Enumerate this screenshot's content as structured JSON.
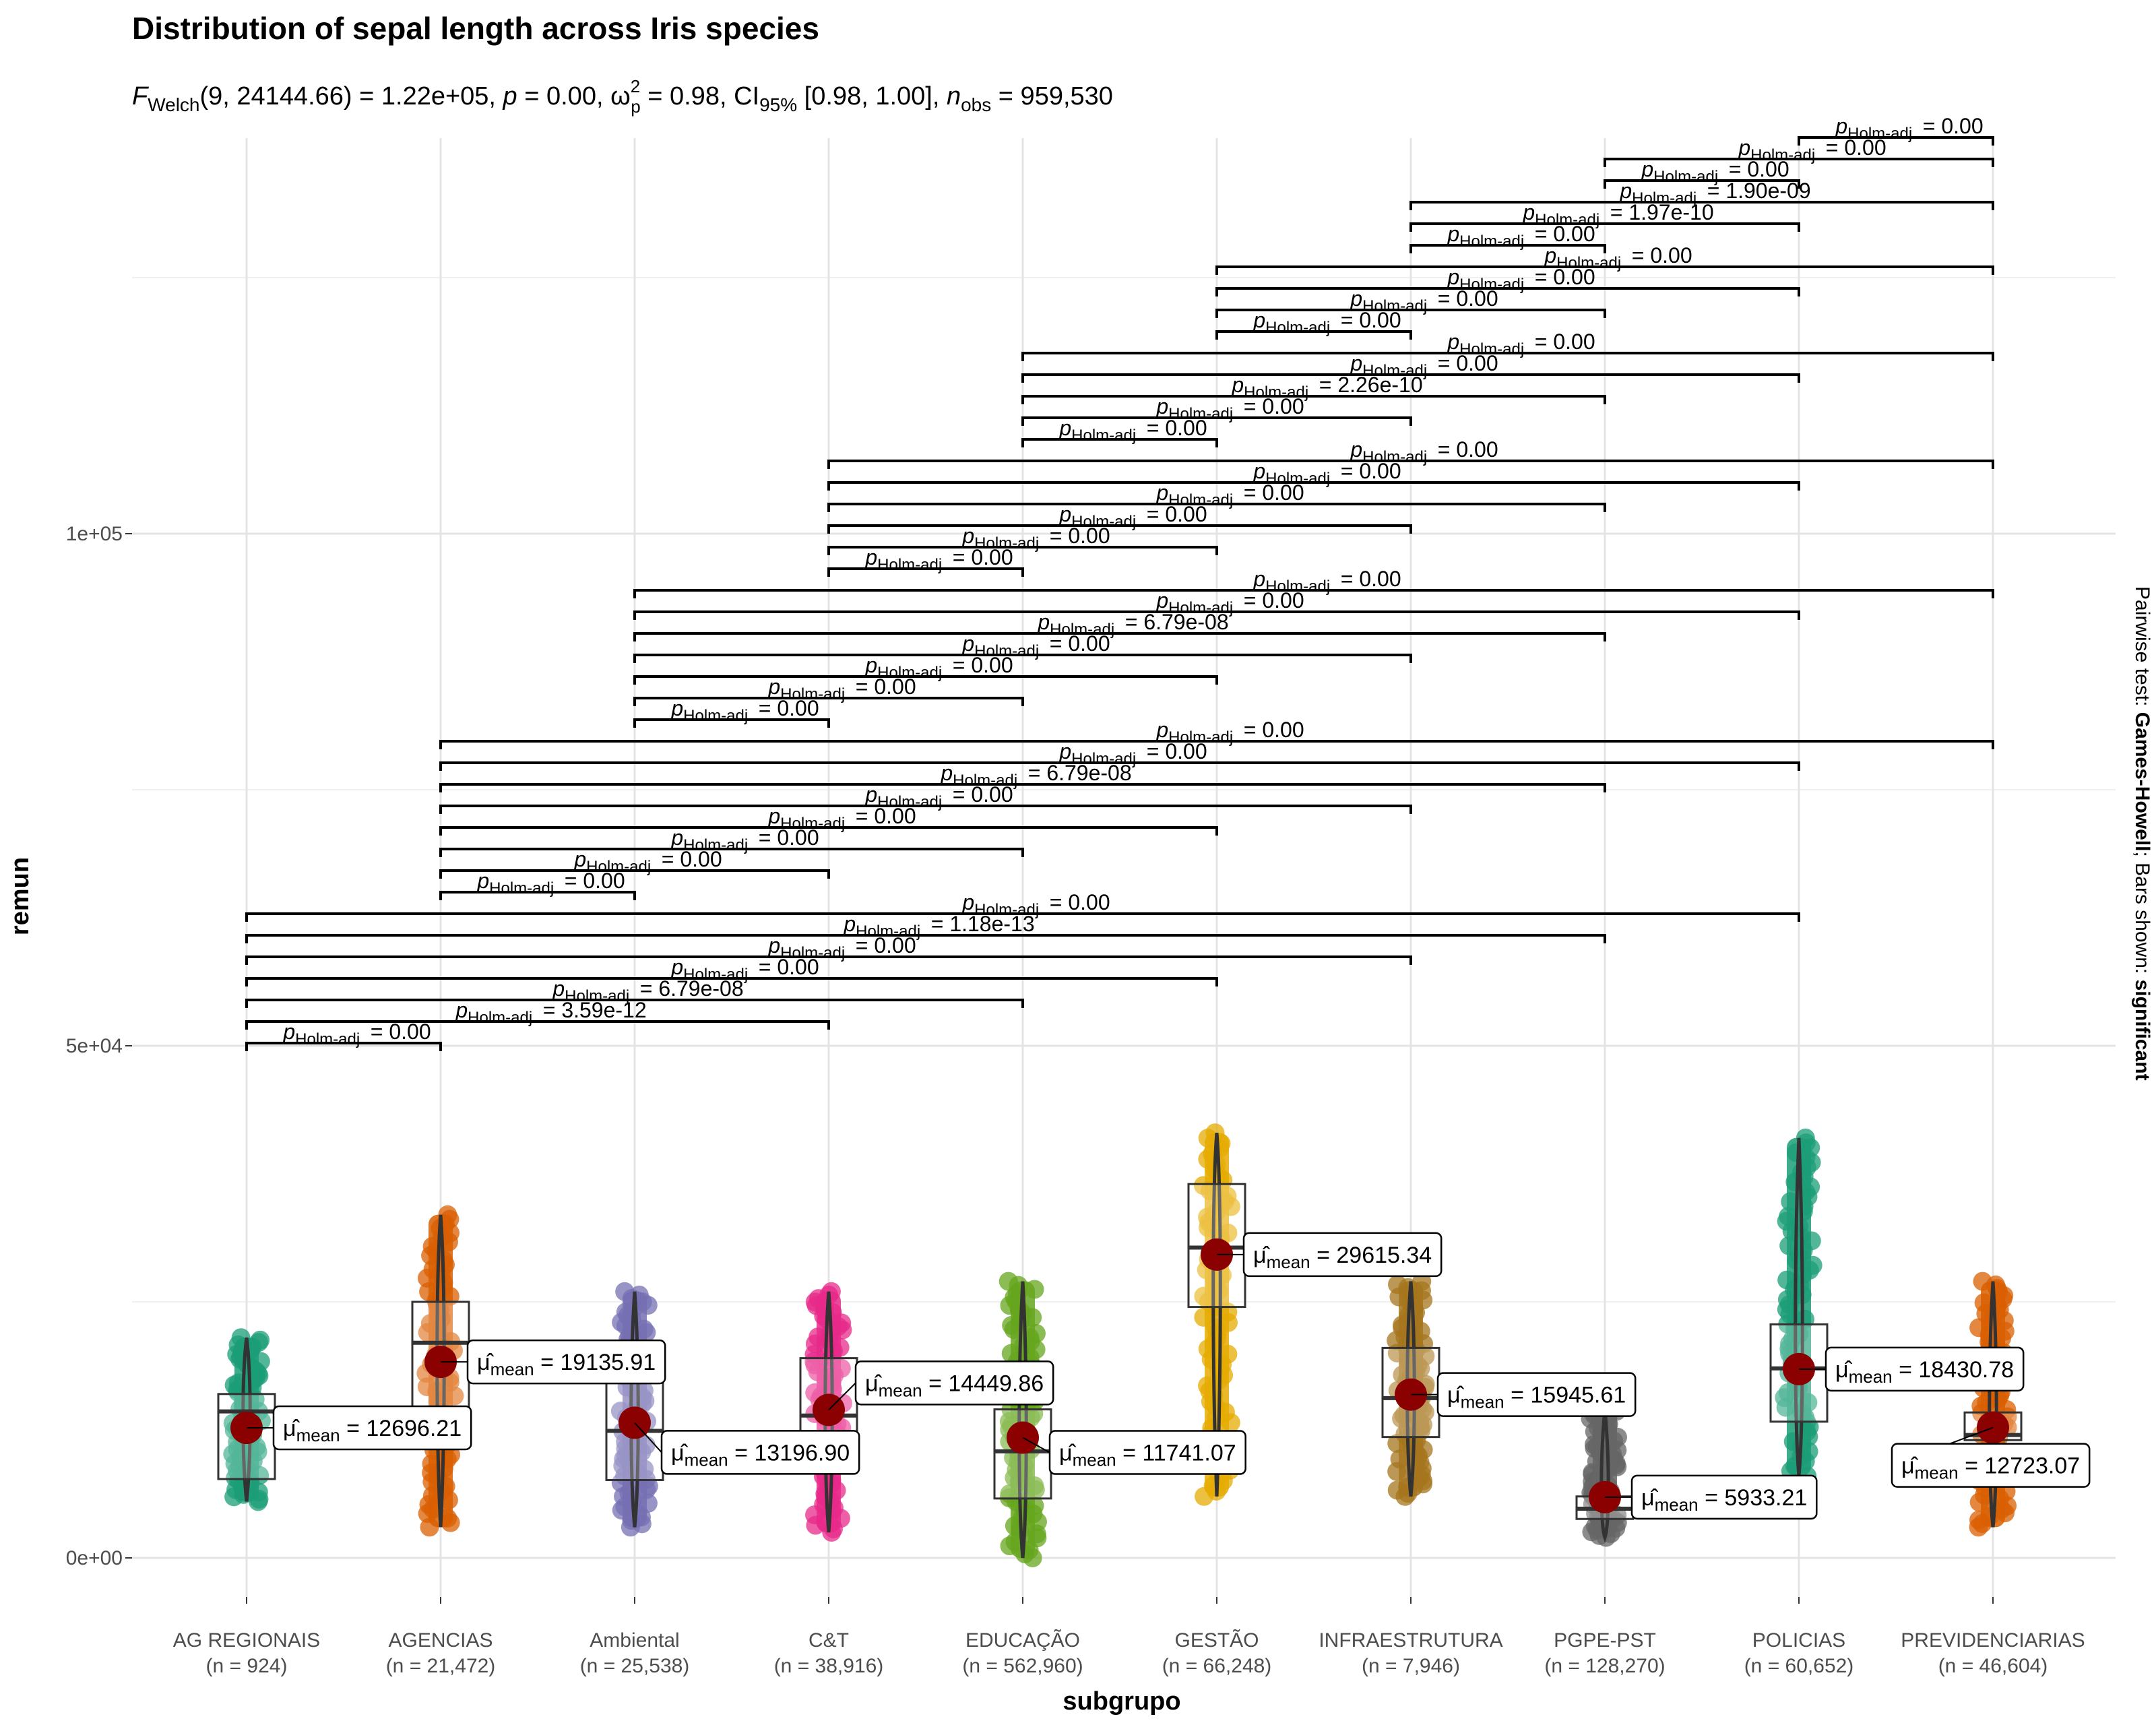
{
  "chart_data": {
    "type": "violin-box",
    "title": "Distribution of sepal length across Iris species",
    "subtitle": "F_Welch(9, 24144.66) = 1.22e+05, p = 0.00, ω̂²_p = 0.98, CI95% [0.98, 1.00], n_obs = 959,530",
    "xlabel": "subgrupo",
    "ylabel": "remun",
    "caption": "Pairwise test: Games-Howell; Bars shown: significant",
    "y_ticks": [
      "0e+00",
      "5e+04",
      "1e+05"
    ],
    "y_tick_values": [
      0,
      50000,
      100000
    ],
    "ylim": [
      -3000,
      135000
    ],
    "grid": true,
    "categories": [
      "AG REGIONAIS",
      "AGENCIAS",
      "Ambiental",
      "C&T",
      "EDUCAÇÃO",
      "GESTÃO",
      "INFRAESTRUTURA",
      "PGPE-PST",
      "POLICIAS",
      "PREVIDENCIARIAS"
    ],
    "n_labels": [
      "(n = 924)",
      "(n = 21,472)",
      "(n = 25,538)",
      "(n = 38,916)",
      "(n = 562,960)",
      "(n = 66,248)",
      "(n = 7,946)",
      "(n = 128,270)",
      "(n = 60,652)",
      "(n = 46,604)"
    ],
    "means": [
      12696.21,
      19135.91,
      13196.9,
      14449.86,
      11741.07,
      29615.34,
      15945.61,
      5933.21,
      18430.78,
      12723.07
    ],
    "mean_labels": [
      "12696.21",
      "19135.91",
      "13196.90",
      "14449.86",
      "11741.07",
      "29615.34",
      "15945.61",
      "5933.21",
      "18430.78",
      "12723.07"
    ],
    "colors": [
      "#1B9E77",
      "#D95F02",
      "#7570B3",
      "#E7298A",
      "#66A61E",
      "#E6AB02",
      "#A6761D",
      "#666666",
      "#1B9E77",
      "#D95F02"
    ],
    "boxes": [
      {
        "q1": 7700,
        "median": 14300,
        "q3": 16000,
        "min": 5500,
        "max": 21500
      },
      {
        "q1": 13000,
        "median": 21000,
        "q3": 25000,
        "min": 3000,
        "max": 33500
      },
      {
        "q1": 7600,
        "median": 12400,
        "q3": 18000,
        "min": 3000,
        "max": 26000
      },
      {
        "q1": 10000,
        "median": 13900,
        "q3": 19500,
        "min": 2500,
        "max": 26000
      },
      {
        "q1": 5800,
        "median": 10400,
        "q3": 14500,
        "min": 0,
        "max": 27000
      },
      {
        "q1": 24500,
        "median": 30300,
        "q3": 36500,
        "min": 6000,
        "max": 41500
      },
      {
        "q1": 11800,
        "median": 15600,
        "q3": 20500,
        "min": 6000,
        "max": 27000
      },
      {
        "q1": 3800,
        "median": 4800,
        "q3": 6000,
        "min": 2000,
        "max": 14500
      },
      {
        "q1": 13300,
        "median": 18500,
        "q3": 22800,
        "min": 8000,
        "max": 41000
      },
      {
        "q1": 11500,
        "median": 12000,
        "q3": 14200,
        "min": 3000,
        "max": 27000
      }
    ],
    "pairwise": [
      {
        "g1": 0,
        "g2": 1,
        "p": "0.00"
      },
      {
        "g1": 0,
        "g2": 3,
        "p": "3.59e-12"
      },
      {
        "g1": 0,
        "g2": 4,
        "p": "6.79e-08"
      },
      {
        "g1": 0,
        "g2": 5,
        "p": "0.00"
      },
      {
        "g1": 0,
        "g2": 6,
        "p": "0.00"
      },
      {
        "g1": 0,
        "g2": 7,
        "p": "1.18e-13"
      },
      {
        "g1": 0,
        "g2": 8,
        "p": "0.00"
      },
      {
        "g1": 1,
        "g2": 2,
        "p": "0.00"
      },
      {
        "g1": 1,
        "g2": 3,
        "p": "0.00"
      },
      {
        "g1": 1,
        "g2": 4,
        "p": "0.00"
      },
      {
        "g1": 1,
        "g2": 5,
        "p": "0.00"
      },
      {
        "g1": 1,
        "g2": 6,
        "p": "0.00"
      },
      {
        "g1": 1,
        "g2": 7,
        "p": "6.79e-08"
      },
      {
        "g1": 1,
        "g2": 8,
        "p": "0.00"
      },
      {
        "g1": 1,
        "g2": 9,
        "p": "0.00"
      },
      {
        "g1": 2,
        "g2": 3,
        "p": "0.00"
      },
      {
        "g1": 2,
        "g2": 4,
        "p": "0.00"
      },
      {
        "g1": 2,
        "g2": 5,
        "p": "0.00"
      },
      {
        "g1": 2,
        "g2": 6,
        "p": "0.00"
      },
      {
        "g1": 2,
        "g2": 7,
        "p": "6.79e-08"
      },
      {
        "g1": 2,
        "g2": 8,
        "p": "0.00"
      },
      {
        "g1": 2,
        "g2": 9,
        "p": "0.00"
      },
      {
        "g1": 3,
        "g2": 4,
        "p": "0.00"
      },
      {
        "g1": 3,
        "g2": 5,
        "p": "0.00"
      },
      {
        "g1": 3,
        "g2": 6,
        "p": "0.00"
      },
      {
        "g1": 3,
        "g2": 7,
        "p": "0.00"
      },
      {
        "g1": 3,
        "g2": 8,
        "p": "0.00"
      },
      {
        "g1": 3,
        "g2": 9,
        "p": "0.00"
      },
      {
        "g1": 4,
        "g2": 5,
        "p": "0.00"
      },
      {
        "g1": 4,
        "g2": 6,
        "p": "0.00"
      },
      {
        "g1": 4,
        "g2": 7,
        "p": "2.26e-10"
      },
      {
        "g1": 4,
        "g2": 8,
        "p": "0.00"
      },
      {
        "g1": 4,
        "g2": 9,
        "p": "0.00"
      },
      {
        "g1": 5,
        "g2": 6,
        "p": "0.00"
      },
      {
        "g1": 5,
        "g2": 7,
        "p": "0.00"
      },
      {
        "g1": 5,
        "g2": 8,
        "p": "0.00"
      },
      {
        "g1": 5,
        "g2": 9,
        "p": "0.00"
      },
      {
        "g1": 6,
        "g2": 7,
        "p": "0.00"
      },
      {
        "g1": 6,
        "g2": 8,
        "p": "1.97e-10"
      },
      {
        "g1": 6,
        "g2": 9,
        "p": "1.90e-09"
      },
      {
        "g1": 7,
        "g2": 8,
        "p": "0.00"
      },
      {
        "g1": 7,
        "g2": 9,
        "p": "0.00"
      },
      {
        "g1": 8,
        "g2": 9,
        "p": "0.00"
      }
    ]
  }
}
